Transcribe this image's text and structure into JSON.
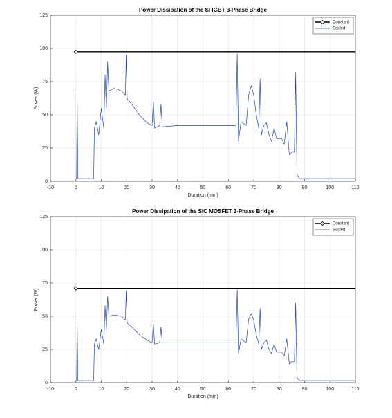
{
  "chart_data": [
    {
      "type": "line",
      "title": "Power Dissipation of the Si IGBT 3-Phase Bridge",
      "xlabel": "Duration (min)",
      "ylabel": "Power (W)",
      "xlim": [
        -10,
        110
      ],
      "ylim": [
        0,
        125
      ],
      "xticks": [
        -10,
        0,
        10,
        20,
        30,
        40,
        50,
        60,
        70,
        80,
        90,
        100,
        110
      ],
      "yticks": [
        0,
        25,
        50,
        75,
        100,
        125
      ],
      "grid": true,
      "legend": "upper right",
      "series": [
        {
          "name": "Constant",
          "color": "#000000",
          "marker": "diamond",
          "x": [
            0,
            110
          ],
          "values": [
            97.5,
            97.5
          ]
        },
        {
          "name": "Scaled",
          "color": "#2a46a0",
          "x": [
            0,
            0.3,
            0.5,
            0.8,
            7,
            7.3,
            8,
            9,
            10,
            11,
            11.5,
            12,
            12.5,
            13,
            15,
            18,
            19.5,
            19.8,
            20.2,
            22,
            25,
            28,
            30,
            30.5,
            31,
            33,
            33.5,
            34,
            40,
            50,
            60,
            63,
            63.5,
            64,
            65,
            67,
            68,
            69,
            70,
            71,
            72,
            72.5,
            73,
            74,
            75,
            76,
            77,
            78,
            79,
            81,
            82,
            83,
            84,
            85,
            86,
            86.5,
            87,
            88,
            110
          ],
          "values": [
            2,
            2,
            67,
            2,
            2,
            40,
            45,
            35,
            55,
            40,
            80,
            55,
            90,
            68,
            70,
            68,
            65,
            95,
            62,
            58,
            50,
            44,
            42,
            60,
            40,
            42,
            58,
            41,
            42,
            42,
            42,
            42,
            96,
            30,
            45,
            42,
            65,
            72,
            65,
            50,
            40,
            77,
            35,
            42,
            44,
            35,
            30,
            40,
            32,
            32,
            28,
            45,
            20,
            22,
            22,
            82,
            5,
            2,
            2
          ]
        }
      ]
    },
    {
      "type": "line",
      "title": "Power Dissipation of the SiC MOSFET 3-Phase Bridge",
      "xlabel": "Duration (min)",
      "ylabel": "Power (W)",
      "xlim": [
        -10,
        110
      ],
      "ylim": [
        0,
        125
      ],
      "xticks": [
        -10,
        0,
        10,
        20,
        30,
        40,
        50,
        60,
        70,
        80,
        90,
        100,
        110
      ],
      "yticks": [
        0,
        25,
        50,
        75,
        100,
        125
      ],
      "grid": true,
      "legend": "upper right",
      "series": [
        {
          "name": "Constant",
          "color": "#000000",
          "marker": "diamond",
          "x": [
            0,
            110
          ],
          "values": [
            71,
            71
          ]
        },
        {
          "name": "Scaled",
          "color": "#2a46a0",
          "x": [
            0,
            0.3,
            0.5,
            0.8,
            7,
            7.3,
            8,
            9,
            10,
            11,
            11.5,
            12,
            12.5,
            13,
            15,
            18,
            19.5,
            19.8,
            20.2,
            22,
            25,
            28,
            30,
            30.5,
            31,
            33,
            33.5,
            34,
            40,
            50,
            60,
            63,
            63.5,
            64,
            65,
            67,
            68,
            69,
            70,
            71,
            72,
            72.5,
            73,
            74,
            75,
            76,
            77,
            78,
            79,
            81,
            82,
            83,
            84,
            85,
            86,
            86.5,
            87,
            88,
            110
          ],
          "values": [
            1.5,
            1.5,
            48,
            1.5,
            1.5,
            29,
            33,
            25,
            40,
            29,
            58,
            40,
            65,
            50,
            51,
            50,
            47,
            69,
            45,
            42,
            36,
            32,
            30,
            44,
            29,
            30,
            42,
            30,
            30,
            30,
            30,
            30,
            70,
            22,
            33,
            30,
            48,
            52,
            47,
            36,
            29,
            56,
            25,
            30,
            32,
            25,
            22,
            29,
            23,
            23,
            20,
            33,
            14,
            16,
            16,
            60,
            4,
            1.5,
            1.5
          ]
        }
      ]
    }
  ]
}
